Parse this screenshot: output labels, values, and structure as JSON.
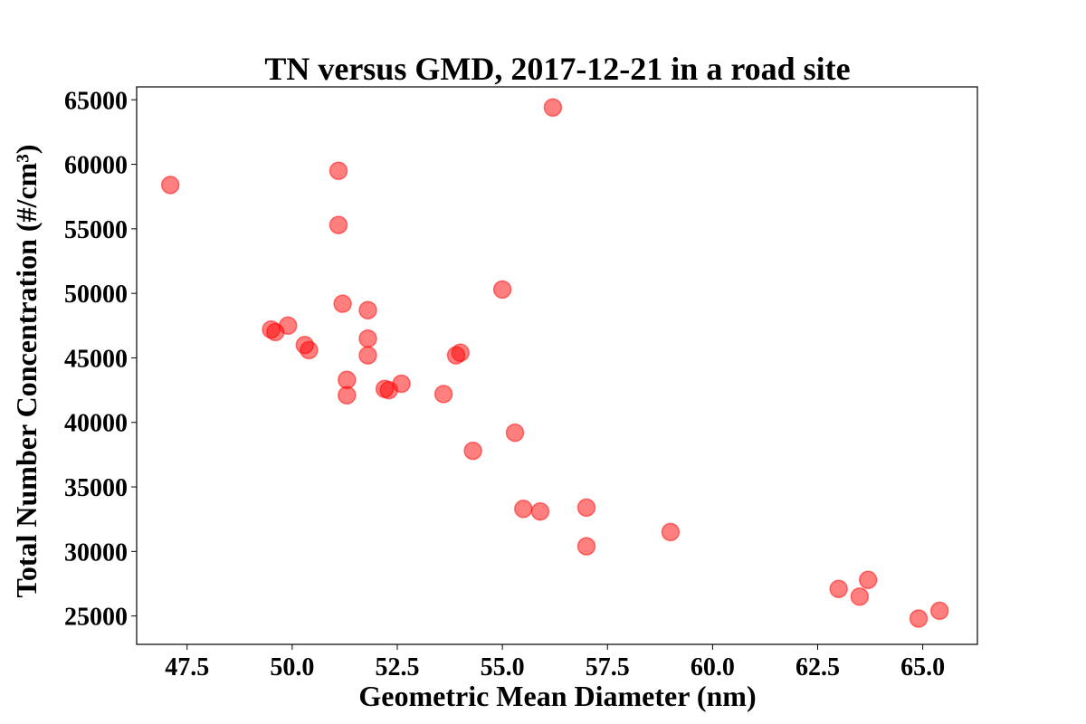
{
  "chart_data": {
    "type": "scatter",
    "title": "TN versus GMD, 2017-12-21 in a road site",
    "xlabel": "Geometric Mean Diameter (nm)",
    "ylabel": "Total Number Concentration (#/cm³)",
    "xlim": [
      46.3,
      66.3
    ],
    "ylim": [
      22800,
      66000
    ],
    "xticks": [
      "47.5",
      "50.0",
      "52.5",
      "55.0",
      "57.5",
      "60.0",
      "62.5",
      "65.0"
    ],
    "yticks": [
      "25000",
      "30000",
      "35000",
      "40000",
      "45000",
      "50000",
      "55000",
      "60000",
      "65000"
    ],
    "grid": false,
    "color": "#ff0000",
    "points": [
      {
        "x": 47.1,
        "y": 58400
      },
      {
        "x": 49.5,
        "y": 47200
      },
      {
        "x": 49.6,
        "y": 47000
      },
      {
        "x": 49.9,
        "y": 47500
      },
      {
        "x": 50.3,
        "y": 46000
      },
      {
        "x": 50.4,
        "y": 45600
      },
      {
        "x": 51.1,
        "y": 59500
      },
      {
        "x": 51.1,
        "y": 55300
      },
      {
        "x": 51.2,
        "y": 49200
      },
      {
        "x": 51.3,
        "y": 43300
      },
      {
        "x": 51.3,
        "y": 42100
      },
      {
        "x": 51.8,
        "y": 48700
      },
      {
        "x": 51.8,
        "y": 46500
      },
      {
        "x": 51.8,
        "y": 45200
      },
      {
        "x": 52.2,
        "y": 42600
      },
      {
        "x": 52.3,
        "y": 42500
      },
      {
        "x": 52.6,
        "y": 43000
      },
      {
        "x": 53.6,
        "y": 42200
      },
      {
        "x": 53.9,
        "y": 45200
      },
      {
        "x": 54.0,
        "y": 45400
      },
      {
        "x": 54.3,
        "y": 37800
      },
      {
        "x": 55.0,
        "y": 50300
      },
      {
        "x": 55.3,
        "y": 39200
      },
      {
        "x": 55.5,
        "y": 33300
      },
      {
        "x": 55.9,
        "y": 33100
      },
      {
        "x": 56.2,
        "y": 64400
      },
      {
        "x": 57.0,
        "y": 33400
      },
      {
        "x": 57.0,
        "y": 30400
      },
      {
        "x": 59.0,
        "y": 31500
      },
      {
        "x": 63.0,
        "y": 27100
      },
      {
        "x": 63.5,
        "y": 26500
      },
      {
        "x": 63.7,
        "y": 27800
      },
      {
        "x": 64.9,
        "y": 24800
      },
      {
        "x": 65.4,
        "y": 25400
      }
    ]
  }
}
